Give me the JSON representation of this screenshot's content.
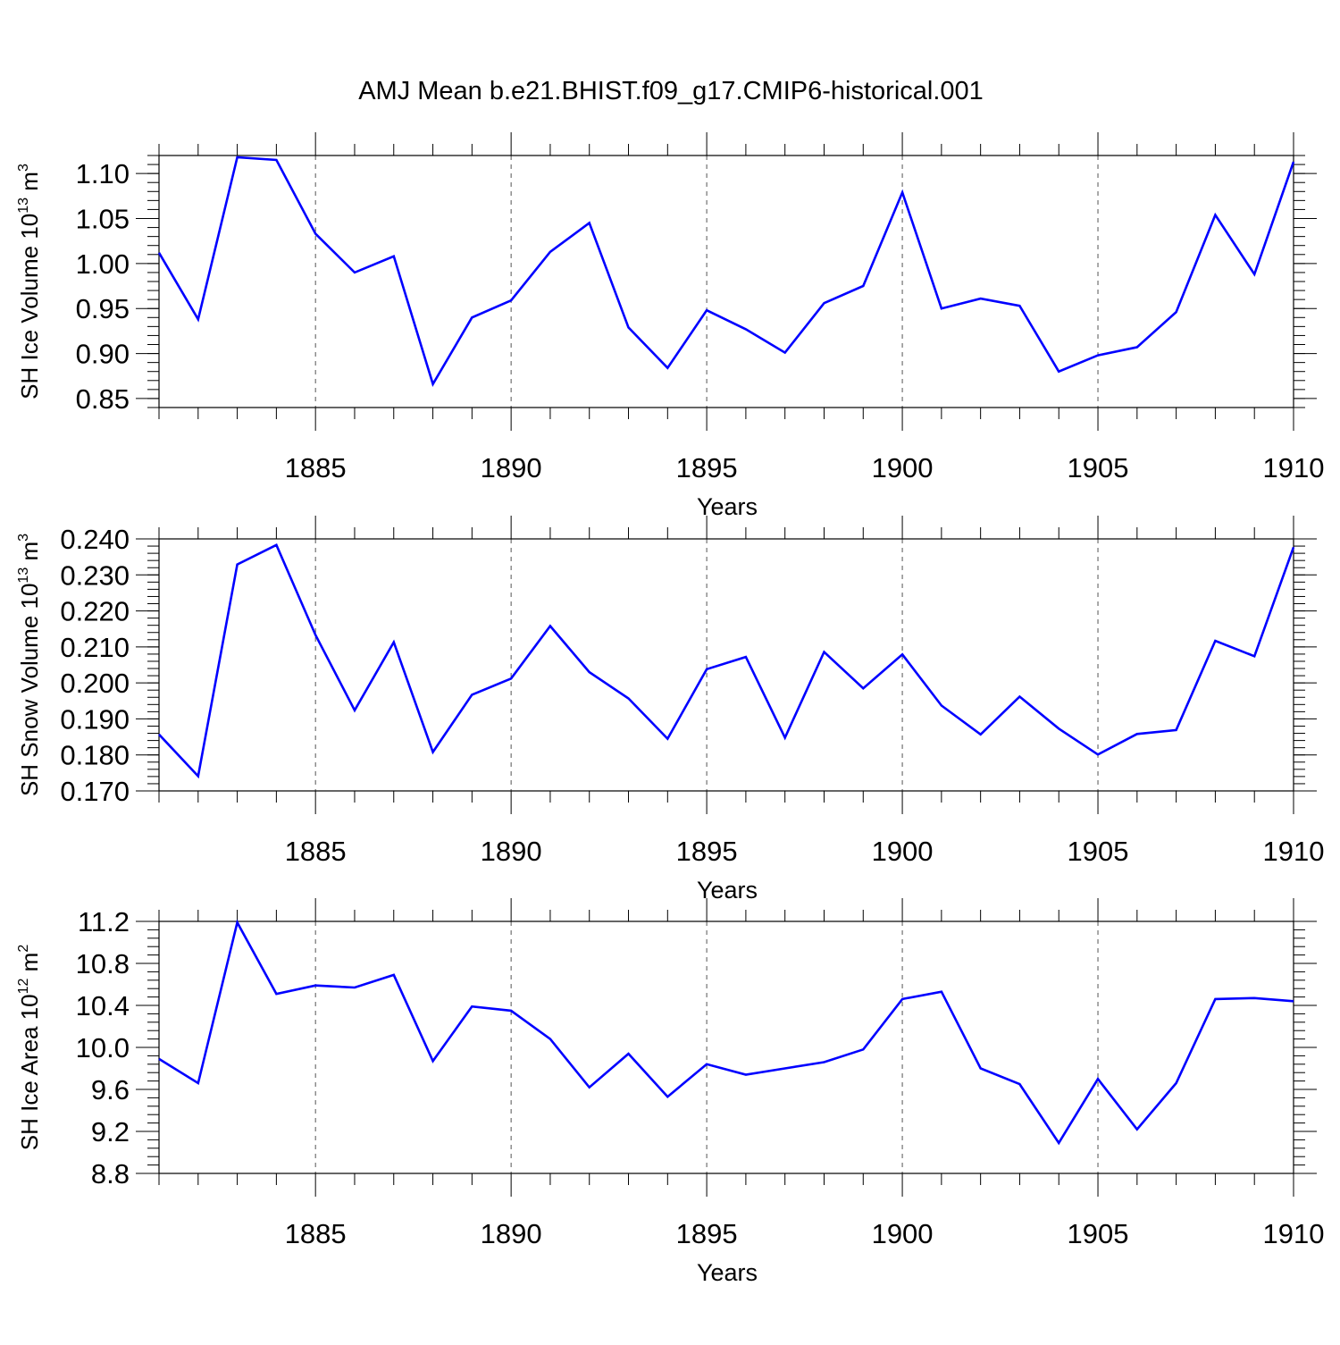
{
  "title": "AMJ Mean b.e21.BHIST.f09_g17.CMIP6-historical.001",
  "line_color": "#0000ff",
  "chart_data": [
    {
      "type": "line",
      "ylabel_main": "SH Ice Volume 10",
      "ylabel_exp": "13",
      "ylabel_unit": " m",
      "ylabel_unit_exp": "3",
      "xlabel": "Years",
      "xlim": [
        1881,
        1910
      ],
      "ylim": [
        0.84,
        1.12
      ],
      "xticks": [
        1885,
        1890,
        1895,
        1900,
        1905,
        1910
      ],
      "yticks": [
        0.85,
        0.9,
        0.95,
        1.0,
        1.05,
        1.1
      ],
      "ytick_labels": [
        "0.85",
        "0.90",
        "0.95",
        "1.00",
        "1.05",
        "1.10"
      ],
      "y_minor_step": 0.01,
      "x": [
        1881,
        1882,
        1883,
        1884,
        1885,
        1886,
        1887,
        1888,
        1889,
        1890,
        1891,
        1892,
        1893,
        1894,
        1895,
        1896,
        1897,
        1898,
        1899,
        1900,
        1901,
        1902,
        1903,
        1904,
        1905,
        1906,
        1907,
        1908,
        1909,
        1910
      ],
      "series": [
        {
          "name": "SH Ice Volume",
          "values": [
            1.012,
            0.938,
            1.118,
            1.115,
            1.033,
            0.99,
            1.008,
            0.866,
            0.94,
            0.959,
            1.013,
            1.045,
            0.929,
            0.884,
            0.948,
            0.927,
            0.901,
            0.956,
            0.975,
            1.079,
            0.95,
            0.961,
            0.953,
            0.88,
            0.898,
            0.907,
            0.946,
            1.054,
            0.988,
            1.113
          ]
        }
      ]
    },
    {
      "type": "line",
      "ylabel_main": "SH Snow Volume 10",
      "ylabel_exp": "13",
      "ylabel_unit": " m",
      "ylabel_unit_exp": "3",
      "xlabel": "Years",
      "xlim": [
        1881,
        1910
      ],
      "ylim": [
        0.17,
        0.24
      ],
      "xticks": [
        1885,
        1890,
        1895,
        1900,
        1905,
        1910
      ],
      "yticks": [
        0.17,
        0.18,
        0.19,
        0.2,
        0.21,
        0.22,
        0.23,
        0.24
      ],
      "ytick_labels": [
        "0.170",
        "0.180",
        "0.190",
        "0.200",
        "0.210",
        "0.220",
        "0.230",
        "0.240"
      ],
      "y_minor_step": 0.002,
      "x": [
        1881,
        1882,
        1883,
        1884,
        1885,
        1886,
        1887,
        1888,
        1889,
        1890,
        1891,
        1892,
        1893,
        1894,
        1895,
        1896,
        1897,
        1898,
        1899,
        1900,
        1901,
        1902,
        1903,
        1904,
        1905,
        1906,
        1907,
        1908,
        1909,
        1910
      ],
      "series": [
        {
          "name": "SH Snow Volume",
          "values": [
            0.1857,
            0.1741,
            0.2329,
            0.2383,
            0.2133,
            0.1924,
            0.2113,
            0.1808,
            0.1967,
            0.2012,
            0.2158,
            0.203,
            0.1957,
            0.1845,
            0.2038,
            0.2072,
            0.1848,
            0.2086,
            0.1985,
            0.2079,
            0.1937,
            0.1857,
            0.1962,
            0.1873,
            0.1801,
            0.1858,
            0.1869,
            0.2117,
            0.2074,
            0.2377
          ]
        }
      ]
    },
    {
      "type": "line",
      "ylabel_main": "SH Ice Area 10",
      "ylabel_exp": "12",
      "ylabel_unit": " m",
      "ylabel_unit_exp": "2",
      "xlabel": "Years",
      "xlim": [
        1881,
        1910
      ],
      "ylim": [
        8.8,
        11.2
      ],
      "xticks": [
        1885,
        1890,
        1895,
        1900,
        1905,
        1910
      ],
      "yticks": [
        8.8,
        9.2,
        9.6,
        10.0,
        10.4,
        10.8,
        11.2
      ],
      "ytick_labels": [
        "8.8",
        "9.2",
        "9.6",
        "10.0",
        "10.4",
        "10.8",
        "11.2"
      ],
      "y_minor_step": 0.08,
      "x": [
        1881,
        1882,
        1883,
        1884,
        1885,
        1886,
        1887,
        1888,
        1889,
        1890,
        1891,
        1892,
        1893,
        1894,
        1895,
        1896,
        1897,
        1898,
        1899,
        1900,
        1901,
        1902,
        1903,
        1904,
        1905,
        1906,
        1907,
        1908,
        1909,
        1910
      ],
      "series": [
        {
          "name": "SH Ice Area",
          "values": [
            9.89,
            9.66,
            11.19,
            10.51,
            10.59,
            10.57,
            10.69,
            9.87,
            10.39,
            10.35,
            10.08,
            9.62,
            9.94,
            9.53,
            9.84,
            9.74,
            9.8,
            9.86,
            9.98,
            10.46,
            10.53,
            9.8,
            9.65,
            9.09,
            9.7,
            9.22,
            9.66,
            10.46,
            10.47,
            10.44
          ]
        }
      ]
    }
  ]
}
